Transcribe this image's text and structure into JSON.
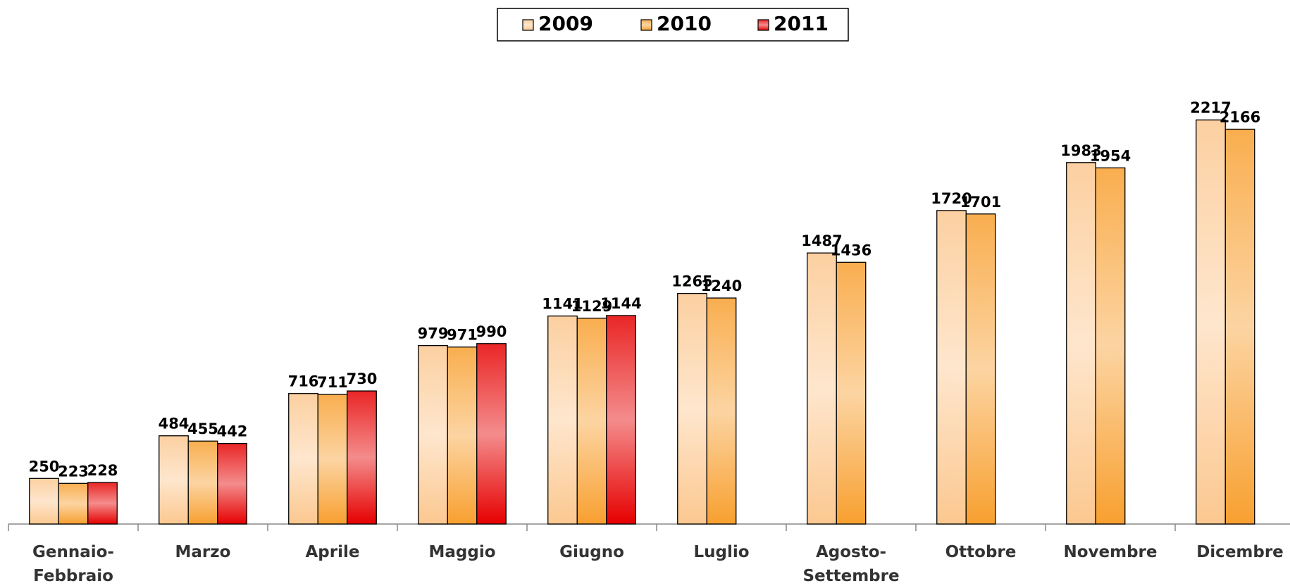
{
  "chart_data": {
    "type": "bar",
    "categories": [
      "Gennaio-Febbraio",
      "Marzo",
      "Aprile",
      "Maggio",
      "Giugno",
      "Luglio",
      "Agosto-Settembre",
      "Ottobre",
      "Novembre",
      "Dicembre"
    ],
    "series": [
      {
        "name": "2009",
        "color": "#fcc890",
        "values": [
          250,
          484,
          716,
          979,
          1141,
          1265,
          1487,
          1720,
          1983,
          2217
        ]
      },
      {
        "name": "2010",
        "color": "#f8a030",
        "values": [
          223,
          455,
          711,
          971,
          1129,
          1240,
          1436,
          1701,
          1954,
          2166
        ]
      },
      {
        "name": "2011",
        "color": "#e60000",
        "values": [
          228,
          442,
          730,
          990,
          1144,
          null,
          null,
          null,
          null,
          null
        ]
      }
    ],
    "ylim": [
      0,
      2500
    ],
    "legend": "top"
  }
}
